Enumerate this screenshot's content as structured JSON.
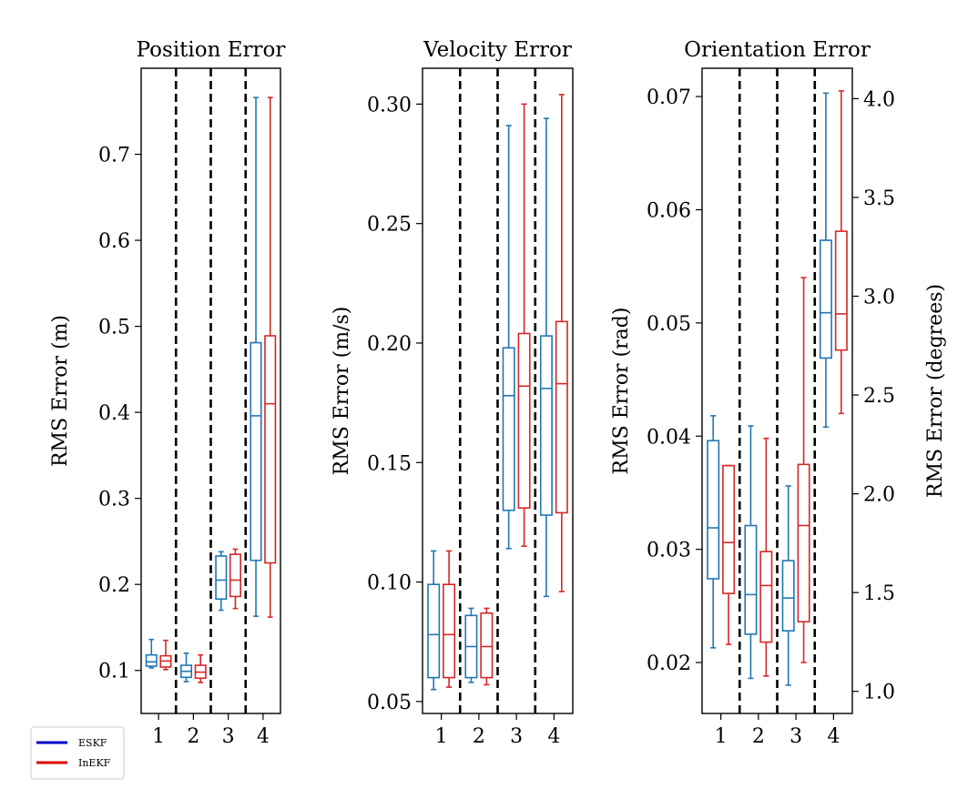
{
  "colors": {
    "eskf": "#1f77b4",
    "inekf": "#d62728",
    "legend_eskf": "#0000cc",
    "legend_inekf": "#dd0000"
  },
  "legend": {
    "items": [
      {
        "label": "ESKF"
      },
      {
        "label": "InEKF"
      }
    ],
    "placement": "bottom-left, outside axes"
  },
  "chart_data": [
    {
      "type": "box",
      "title": "Position Error",
      "ylabel": "RMS Error (m)",
      "categories": [
        "1",
        "2",
        "3",
        "4"
      ],
      "ylim": [
        0.05,
        0.8
      ],
      "yticks": [
        0.1,
        0.2,
        0.3,
        0.4,
        0.5,
        0.6,
        0.7
      ],
      "ytick_labels": [
        "0.1",
        "0.2",
        "0.3",
        "0.4",
        "0.5",
        "0.6",
        "0.7"
      ],
      "separators": [
        1.5,
        2.5,
        3.5
      ],
      "grid": false,
      "series": [
        {
          "name": "ESKF",
          "boxes": [
            {
              "whisker_low": 0.103,
              "q1": 0.105,
              "median": 0.11,
              "q3": 0.118,
              "whisker_high": 0.136
            },
            {
              "whisker_low": 0.087,
              "q1": 0.092,
              "median": 0.099,
              "q3": 0.106,
              "whisker_high": 0.12
            },
            {
              "whisker_low": 0.17,
              "q1": 0.183,
              "median": 0.205,
              "q3": 0.233,
              "whisker_high": 0.238
            },
            {
              "whisker_low": 0.163,
              "q1": 0.228,
              "median": 0.396,
              "q3": 0.481,
              "whisker_high": 0.766
            }
          ]
        },
        {
          "name": "InEKF",
          "boxes": [
            {
              "whisker_low": 0.101,
              "q1": 0.104,
              "median": 0.111,
              "q3": 0.117,
              "whisker_high": 0.135
            },
            {
              "whisker_low": 0.086,
              "q1": 0.091,
              "median": 0.098,
              "q3": 0.106,
              "whisker_high": 0.118
            },
            {
              "whisker_low": 0.172,
              "q1": 0.186,
              "median": 0.205,
              "q3": 0.235,
              "whisker_high": 0.241
            },
            {
              "whisker_low": 0.162,
              "q1": 0.225,
              "median": 0.41,
              "q3": 0.489,
              "whisker_high": 0.766
            }
          ]
        }
      ]
    },
    {
      "type": "box",
      "title": "Velocity Error",
      "ylabel": "RMS Error (m/s)",
      "categories": [
        "1",
        "2",
        "3",
        "4"
      ],
      "ylim": [
        0.045,
        0.315
      ],
      "yticks": [
        0.05,
        0.1,
        0.15,
        0.2,
        0.25,
        0.3
      ],
      "ytick_labels": [
        "0.05",
        "0.10",
        "0.15",
        "0.20",
        "0.25",
        "0.30"
      ],
      "separators": [
        1.5,
        2.5,
        3.5
      ],
      "grid": false,
      "series": [
        {
          "name": "ESKF",
          "boxes": [
            {
              "whisker_low": 0.055,
              "q1": 0.06,
              "median": 0.078,
              "q3": 0.099,
              "whisker_high": 0.113
            },
            {
              "whisker_low": 0.058,
              "q1": 0.06,
              "median": 0.073,
              "q3": 0.086,
              "whisker_high": 0.089
            },
            {
              "whisker_low": 0.114,
              "q1": 0.13,
              "median": 0.178,
              "q3": 0.198,
              "whisker_high": 0.291
            },
            {
              "whisker_low": 0.094,
              "q1": 0.128,
              "median": 0.181,
              "q3": 0.203,
              "whisker_high": 0.294
            }
          ]
        },
        {
          "name": "InEKF",
          "boxes": [
            {
              "whisker_low": 0.056,
              "q1": 0.06,
              "median": 0.078,
              "q3": 0.099,
              "whisker_high": 0.113
            },
            {
              "whisker_low": 0.057,
              "q1": 0.06,
              "median": 0.073,
              "q3": 0.087,
              "whisker_high": 0.089
            },
            {
              "whisker_low": 0.115,
              "q1": 0.131,
              "median": 0.182,
              "q3": 0.204,
              "whisker_high": 0.3
            },
            {
              "whisker_low": 0.096,
              "q1": 0.129,
              "median": 0.183,
              "q3": 0.209,
              "whisker_high": 0.304
            }
          ]
        }
      ]
    },
    {
      "type": "box",
      "title": "Orientation Error",
      "ylabel": "RMS Error (rad)",
      "ylabel_right": "RMS Error (degrees)",
      "categories": [
        "1",
        "2",
        "3",
        "4"
      ],
      "ylim": [
        0.0155,
        0.0725
      ],
      "yticks": [
        0.02,
        0.03,
        0.04,
        0.05,
        0.06,
        0.07
      ],
      "ytick_labels": [
        "0.02",
        "0.03",
        "0.04",
        "0.05",
        "0.06",
        "0.07"
      ],
      "yticks_right": [
        1.0,
        1.5,
        2.0,
        2.5,
        3.0,
        3.5,
        4.0
      ],
      "ytick_labels_right": [
        "1.0",
        "1.5",
        "2.0",
        "2.5",
        "3.0",
        "3.5",
        "4.0"
      ],
      "separators": [
        1.5,
        2.5,
        3.5
      ],
      "grid": false,
      "series": [
        {
          "name": "ESKF",
          "boxes": [
            {
              "whisker_low": 0.0213,
              "q1": 0.0274,
              "median": 0.0319,
              "q3": 0.0396,
              "whisker_high": 0.0418
            },
            {
              "whisker_low": 0.0186,
              "q1": 0.0225,
              "median": 0.026,
              "q3": 0.0321,
              "whisker_high": 0.0409
            },
            {
              "whisker_low": 0.018,
              "q1": 0.0228,
              "median": 0.0257,
              "q3": 0.029,
              "whisker_high": 0.0356
            },
            {
              "whisker_low": 0.0408,
              "q1": 0.0469,
              "median": 0.0509,
              "q3": 0.0573,
              "whisker_high": 0.0703
            }
          ]
        },
        {
          "name": "InEKF",
          "boxes": [
            {
              "whisker_low": 0.0216,
              "q1": 0.0261,
              "median": 0.0306,
              "q3": 0.0374,
              "whisker_high": 0.0374
            },
            {
              "whisker_low": 0.0188,
              "q1": 0.0218,
              "median": 0.0268,
              "q3": 0.0298,
              "whisker_high": 0.0398
            },
            {
              "whisker_low": 0.02,
              "q1": 0.0236,
              "median": 0.0321,
              "q3": 0.0375,
              "whisker_high": 0.054
            },
            {
              "whisker_low": 0.042,
              "q1": 0.0476,
              "median": 0.0508,
              "q3": 0.0581,
              "whisker_high": 0.0705
            }
          ]
        }
      ]
    }
  ]
}
